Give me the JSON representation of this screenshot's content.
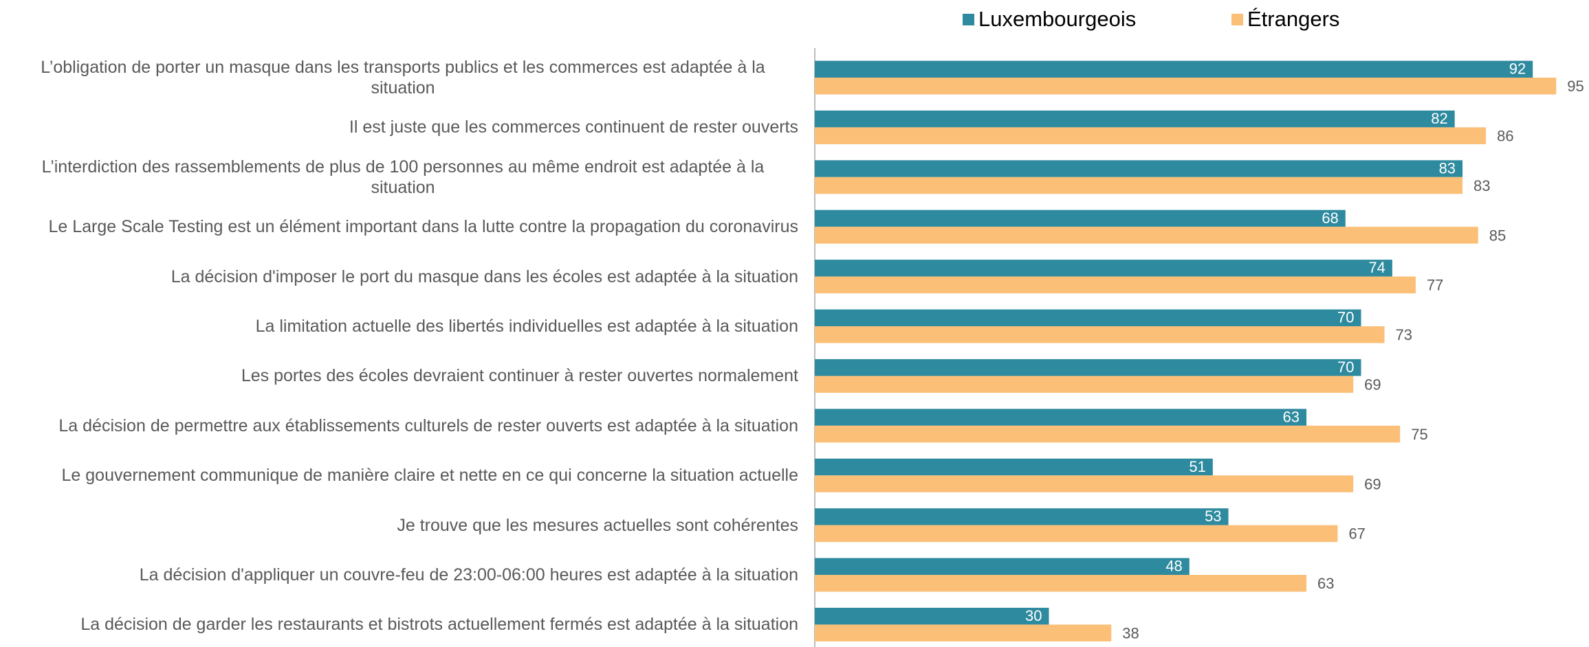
{
  "chart_data": {
    "type": "barh",
    "categories": [
      "L’obligation de porter un masque dans les transports publics et les commerces est adaptée à la situation",
      "Il est juste que les commerces continuent de rester ouverts",
      "L’interdiction des rassemblements de plus de 100 personnes au même endroit est adaptée à la situation",
      "Le Large Scale Testing est un élément important dans la lutte contre la propagation du coronavirus",
      "La décision d'imposer le port du masque dans les écoles est adaptée à la situation",
      "La limitation actuelle des libertés individuelles est adaptée à la situation",
      "Les portes des écoles devraient continuer à rester ouvertes normalement",
      "La décision de permettre aux établissements culturels de rester ouverts est adaptée à la situation",
      "Le gouvernement communique de manière claire et nette en ce qui concerne la situation actuelle",
      "Je trouve que les mesures actuelles sont cohérentes",
      "La décision d'appliquer un couvre-feu de 23:00-06:00 heures est adaptée à la situation",
      "La décision de garder les restaurants et bistrots actuellement fermés est adaptée à la situation"
    ],
    "series": [
      {
        "name": "Luxembourgeois",
        "color": "#2e8a9e",
        "values": [
          92,
          82,
          83,
          68,
          74,
          70,
          70,
          63,
          51,
          53,
          48,
          30
        ]
      },
      {
        "name": "Étrangers",
        "color": "#fbbf78",
        "values": [
          95,
          86,
          83,
          85,
          77,
          73,
          69,
          75,
          69,
          67,
          63,
          38
        ]
      }
    ],
    "xlim": [
      0,
      100
    ]
  }
}
